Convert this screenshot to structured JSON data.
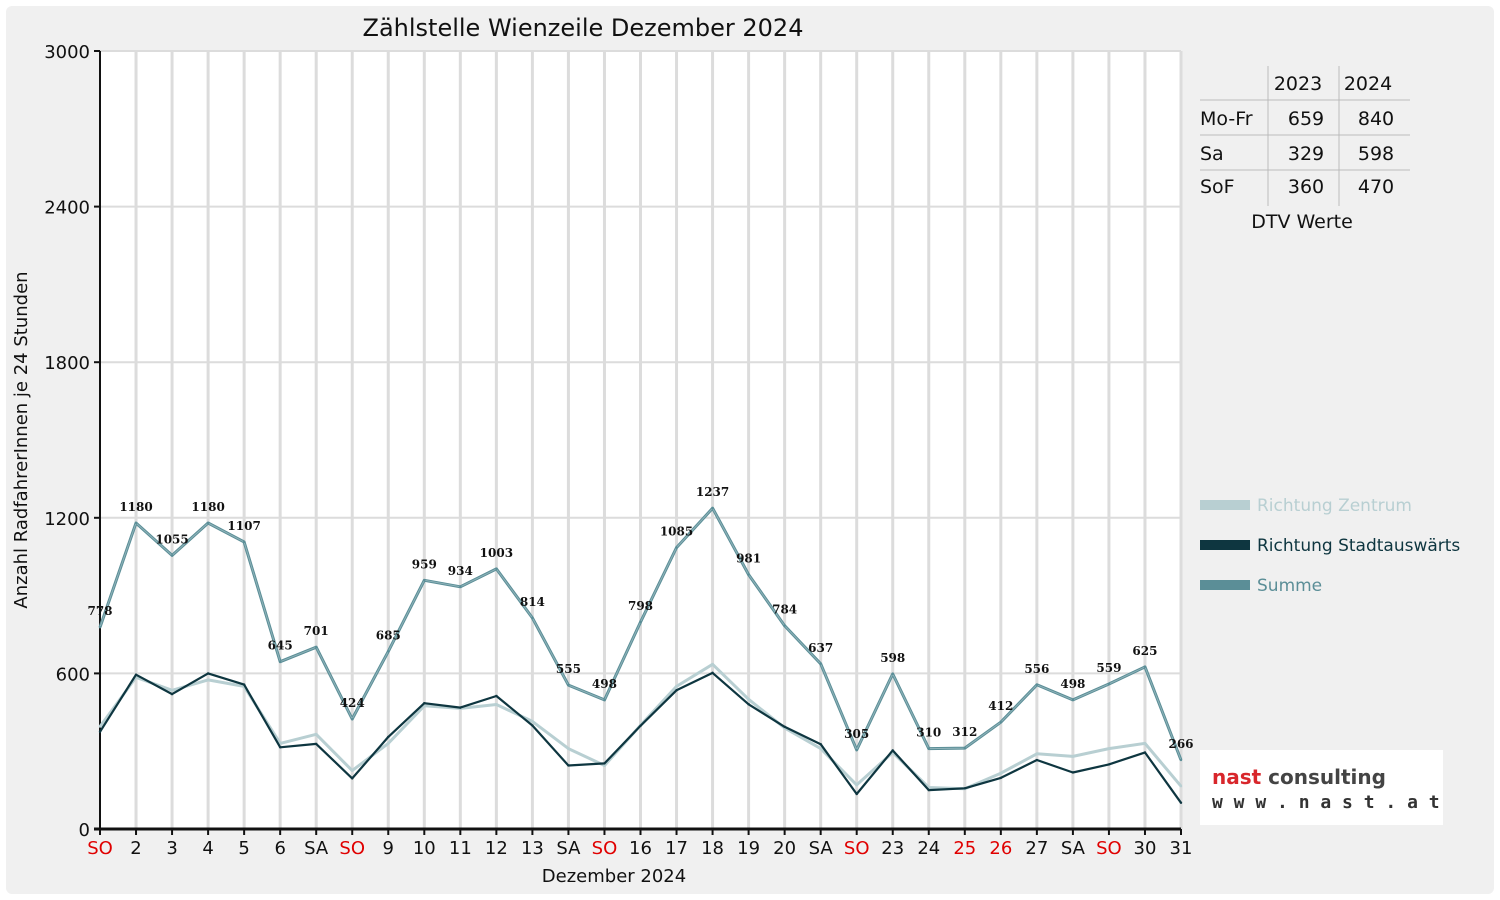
{
  "chart_data": {
    "type": "line",
    "title": "Zählstelle Wienzeile Dezember 2024",
    "xlabel": "Dezember 2024",
    "ylabel": "Anzahl RadfahrerInnen je 24 Stunden",
    "ylim": [
      0,
      3000
    ],
    "yticks": [
      0,
      600,
      1200,
      1800,
      2400,
      3000
    ],
    "grid": true,
    "legend_position": "right",
    "categories": [
      "SO",
      "2",
      "3",
      "4",
      "5",
      "6",
      "SA",
      "SO",
      "9",
      "10",
      "11",
      "12",
      "13",
      "SA",
      "SO",
      "16",
      "17",
      "18",
      "19",
      "20",
      "SA",
      "SO",
      "23",
      "24",
      "25",
      "26",
      "27",
      "SA",
      "SO",
      "30",
      "31"
    ],
    "red_categories": [
      0,
      7,
      14,
      21,
      24,
      25,
      28
    ],
    "series": [
      {
        "name": "Richtung Zentrum",
        "color": "#b8cfd2",
        "values": [
          395,
          585,
          535,
          575,
          550,
          330,
          365,
          225,
          330,
          475,
          465,
          480,
          415,
          310,
          245,
          400,
          550,
          635,
          500,
          390,
          310,
          170,
          295,
          160,
          155,
          215,
          290,
          280,
          310,
          330,
          165
        ]
      },
      {
        "name": "Richtung Stadtauswärts",
        "color": "#0e3640",
        "values": [
          375,
          595,
          520,
          600,
          557,
          315,
          328,
          195,
          355,
          485,
          468,
          513,
          399,
          245,
          253,
          398,
          535,
          602,
          481,
          394,
          327,
          135,
          303,
          150,
          157,
          197,
          266,
          218,
          249,
          295,
          101
        ]
      },
      {
        "name": "Summe",
        "color": "#5b8e97",
        "show_labels": true,
        "values": [
          778,
          1180,
          1055,
          1180,
          1107,
          645,
          701,
          424,
          685,
          959,
          934,
          1003,
          814,
          555,
          498,
          798,
          1085,
          1237,
          981,
          784,
          637,
          305,
          598,
          310,
          312,
          412,
          556,
          498,
          559,
          625,
          266
        ]
      }
    ]
  },
  "dtv_table": {
    "caption": "DTV Werte",
    "headers": [
      "2023",
      "2024"
    ],
    "rows": [
      {
        "label": "Mo-Fr",
        "v2023": "659",
        "v2024": "840"
      },
      {
        "label": "Sa",
        "v2023": "329",
        "v2024": "598"
      },
      {
        "label": "SoF",
        "v2023": "360",
        "v2024": "470"
      }
    ]
  },
  "logo": {
    "brand_part1": "nast",
    "brand_part2": " consulting",
    "url": "w w w . n a s t . a t",
    "color_red": "#d8262b",
    "color_dark": "#444444"
  }
}
